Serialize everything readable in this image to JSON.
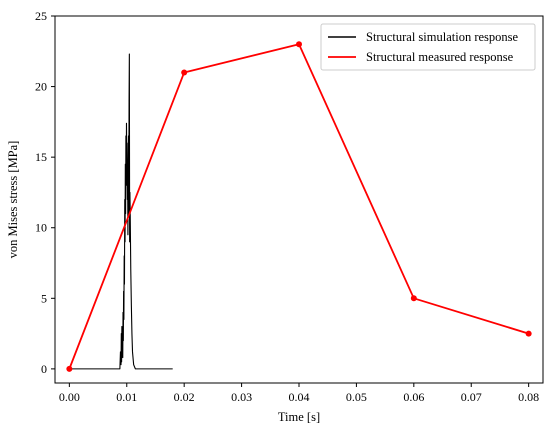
{
  "chart_data": {
    "type": "line",
    "xlabel": "Time [s]",
    "ylabel": "von Mises stress [MPa]",
    "xlim": [
      -0.0025,
      0.0825
    ],
    "ylim": [
      -1,
      25
    ],
    "x_ticks": [
      "0.00",
      "0.01",
      "0.02",
      "0.03",
      "0.04",
      "0.05",
      "0.06",
      "0.07",
      "0.08"
    ],
    "x_tick_values": [
      0,
      0.01,
      0.02,
      0.03,
      0.04,
      0.05,
      0.06,
      0.07,
      0.08
    ],
    "y_ticks": [
      "0",
      "5",
      "10",
      "15",
      "20",
      "25"
    ],
    "y_tick_values": [
      0,
      5,
      10,
      15,
      20,
      25
    ],
    "grid": false,
    "legend_position": "top-right",
    "series": [
      {
        "name": "Structural simulation response",
        "color": "#000000",
        "marker": "none",
        "x": [
          0,
          0.0088,
          0.0089,
          0.009,
          0.00905,
          0.0091,
          0.00915,
          0.0092,
          0.00925,
          0.0093,
          0.00935,
          0.0094,
          0.00945,
          0.0095,
          0.00955,
          0.0096,
          0.00965,
          0.0097,
          0.00975,
          0.0098,
          0.00985,
          0.0099,
          0.00995,
          0.01,
          0.01005,
          0.0101,
          0.01015,
          0.0102,
          0.01025,
          0.0103,
          0.01035,
          0.0104,
          0.01045,
          0.0105,
          0.01055,
          0.0106,
          0.0107,
          0.0108,
          0.0109,
          0.011,
          0.0112,
          0.0115,
          0.0125,
          0.018
        ],
        "y": [
          0,
          0,
          1.2,
          0.3,
          2.5,
          0.5,
          3.0,
          1.0,
          2.5,
          0.8,
          4.0,
          2.0,
          5.5,
          3.5,
          8.0,
          6.0,
          12.0,
          9.0,
          14.5,
          11.0,
          16.5,
          13.0,
          17.4,
          15.0,
          16.0,
          12.0,
          14.0,
          9.5,
          14.5,
          16.5,
          11.0,
          19.0,
          22.3,
          9.0,
          12.5,
          11.0,
          7.0,
          4.5,
          2.5,
          1.2,
          0.3,
          0,
          0,
          0
        ]
      },
      {
        "name": "Structural measured response",
        "color": "#ff0000",
        "marker": "circle",
        "x": [
          0,
          0.02,
          0.04,
          0.06,
          0.08
        ],
        "y": [
          0,
          21,
          23,
          5,
          2.5
        ]
      }
    ]
  }
}
